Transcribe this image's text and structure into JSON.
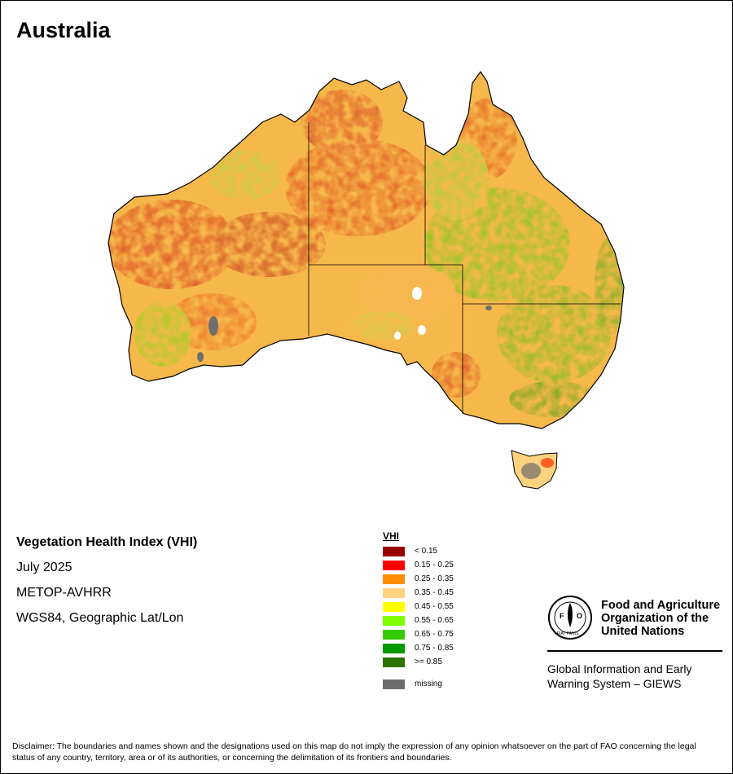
{
  "map": {
    "title": "Australia"
  },
  "info": {
    "title": "Vegetation Health Index (VHI)",
    "date": "July 2025",
    "sensor": "METOP-AVHRR",
    "projection": "WGS84, Geographic Lat/Lon"
  },
  "legend": {
    "title": "VHI",
    "items": [
      {
        "label": "< 0.15",
        "color": "#990000"
      },
      {
        "label": "0.15 - 0.25",
        "color": "#ff0000"
      },
      {
        "label": "0.25 - 0.35",
        "color": "#ff8c00"
      },
      {
        "label": "0.35 - 0.45",
        "color": "#ffd27f"
      },
      {
        "label": "0.45 - 0.55",
        "color": "#ffff00"
      },
      {
        "label": "0.55 - 0.65",
        "color": "#80ff00"
      },
      {
        "label": "0.65 - 0.75",
        "color": "#33cc00"
      },
      {
        "label": "0.75 - 0.85",
        "color": "#009900"
      },
      {
        "label": ">= 0.85",
        "color": "#2d7300"
      }
    ],
    "missing": {
      "label": "missing",
      "color": "#6e6e6e"
    }
  },
  "org": {
    "name_line1": "Food and Agriculture",
    "name_line2": "Organization of the",
    "name_line3": "United Nations",
    "logo_letters": "FAO",
    "logo_motto": "FIAT PANIS",
    "system_line1": "Global Information and Early",
    "system_line2": "Warning System – GIEWS"
  },
  "disclaimer": "Disclaimer: The boundaries and names shown and the designations used on this map do not imply the expression of any opinion whatsoever on the part of FAO concerning the legal status of any country, territory, area or of its authorities, or concerning the delimitation of its frontiers and boundaries."
}
